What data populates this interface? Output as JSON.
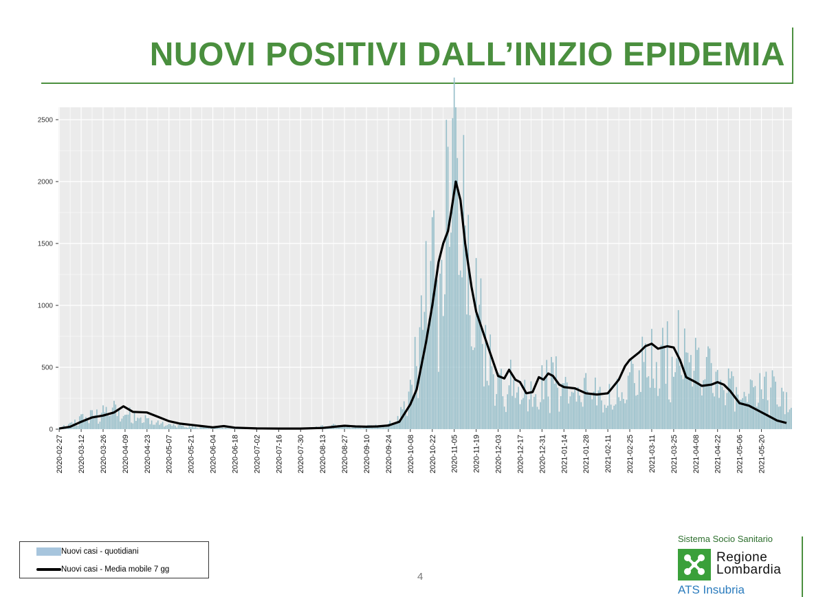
{
  "slide": {
    "title": "NUOVI POSITIVI DALL’INIZIO EPIDEMIA",
    "page_number": "4"
  },
  "legend": {
    "bar_label": "Nuovi casi - quotidiani",
    "line_label": "Nuovi casi - Media mobile 7 gg"
  },
  "logo": {
    "system": "Sistema Socio Sanitario",
    "region_line1": "Regione",
    "region_line2": "Lombardia",
    "agency": "ATS Insubria"
  },
  "colors": {
    "title_green": "#4a8f3e",
    "bar_color": "#97bfca",
    "line_color": "#000000",
    "panel_bg": "#ebebeb",
    "grid": "#ffffff"
  },
  "chart_data": {
    "type": "bar",
    "title": "",
    "xlabel": "",
    "ylabel": "",
    "ylim": [
      0,
      2600
    ],
    "y_ticks": [
      0,
      500,
      1000,
      1500,
      2000,
      2500
    ],
    "x_start": "2020-02-27",
    "x_end": "2021-06-08",
    "x_tick_labels": [
      "2020-02-27",
      "2020-03-12",
      "2020-03-26",
      "2020-04-09",
      "2020-04-23",
      "2020-05-07",
      "2020-05-21",
      "2020-06-04",
      "2020-06-18",
      "2020-07-02",
      "2020-07-16",
      "2020-07-30",
      "2020-08-13",
      "2020-08-27",
      "2020-09-10",
      "2020-09-24",
      "2020-10-08",
      "2020-10-22",
      "2020-11-05",
      "2020-11-19",
      "2020-12-03",
      "2020-12-17",
      "2020-12-31",
      "2021-01-14",
      "2021-01-28",
      "2021-02-11",
      "2021-02-25",
      "2021-03-11",
      "2021-03-25",
      "2021-04-08",
      "2021-04-22",
      "2021-05-06",
      "2021-05-20"
    ],
    "series": [
      {
        "name": "Nuovi casi - quotidiani",
        "kind": "bar",
        "note": "daily new cases; weekly averages with day-level noise, peak approx 2600 on 2020-11-06",
        "weekly_avg": [
          10,
          40,
          90,
          115,
          135,
          175,
          130,
          120,
          80,
          50,
          35,
          28,
          20,
          12,
          15,
          10,
          6,
          5,
          5,
          5,
          5,
          5,
          8,
          12,
          22,
          30,
          28,
          22,
          25,
          30,
          40,
          110,
          320,
          780,
          1450,
          1650,
          1980,
          1700,
          1000,
          650,
          420,
          440,
          360,
          310,
          380,
          430,
          380,
          330,
          320,
          290,
          280,
          290,
          390,
          520,
          580,
          650,
          690,
          650,
          660,
          550,
          380,
          360,
          340,
          360,
          380,
          330,
          220,
          190,
          150,
          100,
          60
        ],
        "peak": {
          "date": "2020-11-06",
          "value": 2600
        }
      },
      {
        "name": "Nuovi casi - Media mobile 7 gg",
        "kind": "line",
        "points": [
          [
            "2020-02-27",
            5
          ],
          [
            "2020-03-05",
            20
          ],
          [
            "2020-03-12",
            60
          ],
          [
            "2020-03-19",
            95
          ],
          [
            "2020-03-26",
            110
          ],
          [
            "2020-04-02",
            135
          ],
          [
            "2020-04-08",
            185
          ],
          [
            "2020-04-14",
            140
          ],
          [
            "2020-04-23",
            135
          ],
          [
            "2020-04-30",
            100
          ],
          [
            "2020-05-07",
            65
          ],
          [
            "2020-05-14",
            45
          ],
          [
            "2020-05-21",
            35
          ],
          [
            "2020-05-28",
            25
          ],
          [
            "2020-06-04",
            15
          ],
          [
            "2020-06-11",
            25
          ],
          [
            "2020-06-18",
            12
          ],
          [
            "2020-07-02",
            6
          ],
          [
            "2020-07-16",
            5
          ],
          [
            "2020-07-30",
            5
          ],
          [
            "2020-08-13",
            10
          ],
          [
            "2020-08-27",
            28
          ],
          [
            "2020-09-03",
            22
          ],
          [
            "2020-09-10",
            20
          ],
          [
            "2020-09-17",
            22
          ],
          [
            "2020-09-24",
            30
          ],
          [
            "2020-10-01",
            60
          ],
          [
            "2020-10-08",
            200
          ],
          [
            "2020-10-12",
            320
          ],
          [
            "2020-10-18",
            700
          ],
          [
            "2020-10-22",
            1000
          ],
          [
            "2020-10-26",
            1350
          ],
          [
            "2020-10-29",
            1500
          ],
          [
            "2020-11-01",
            1600
          ],
          [
            "2020-11-03",
            1750
          ],
          [
            "2020-11-06",
            2000
          ],
          [
            "2020-11-09",
            1850
          ],
          [
            "2020-11-12",
            1500
          ],
          [
            "2020-11-16",
            1150
          ],
          [
            "2020-11-19",
            950
          ],
          [
            "2020-11-23",
            800
          ],
          [
            "2020-11-27",
            650
          ],
          [
            "2020-12-03",
            430
          ],
          [
            "2020-12-07",
            410
          ],
          [
            "2020-12-10",
            480
          ],
          [
            "2020-12-14",
            400
          ],
          [
            "2020-12-17",
            380
          ],
          [
            "2020-12-21",
            290
          ],
          [
            "2020-12-25",
            300
          ],
          [
            "2020-12-29",
            420
          ],
          [
            "2021-01-01",
            400
          ],
          [
            "2021-01-04",
            450
          ],
          [
            "2021-01-07",
            430
          ],
          [
            "2021-01-11",
            360
          ],
          [
            "2021-01-14",
            340
          ],
          [
            "2021-01-21",
            330
          ],
          [
            "2021-01-28",
            290
          ],
          [
            "2021-02-04",
            280
          ],
          [
            "2021-02-11",
            290
          ],
          [
            "2021-02-18",
            400
          ],
          [
            "2021-02-22",
            510
          ],
          [
            "2021-02-25",
            560
          ],
          [
            "2021-03-03",
            620
          ],
          [
            "2021-03-07",
            670
          ],
          [
            "2021-03-11",
            690
          ],
          [
            "2021-03-15",
            650
          ],
          [
            "2021-03-21",
            670
          ],
          [
            "2021-03-25",
            660
          ],
          [
            "2021-03-29",
            560
          ],
          [
            "2021-04-02",
            420
          ],
          [
            "2021-04-08",
            380
          ],
          [
            "2021-04-12",
            350
          ],
          [
            "2021-04-18",
            360
          ],
          [
            "2021-04-22",
            380
          ],
          [
            "2021-04-26",
            360
          ],
          [
            "2021-04-30",
            310
          ],
          [
            "2021-05-06",
            210
          ],
          [
            "2021-05-12",
            190
          ],
          [
            "2021-05-18",
            150
          ],
          [
            "2021-05-24",
            110
          ],
          [
            "2021-05-30",
            70
          ],
          [
            "2021-06-05",
            50
          ]
        ]
      }
    ],
    "grid": true,
    "legend_position": "bottom-left"
  }
}
